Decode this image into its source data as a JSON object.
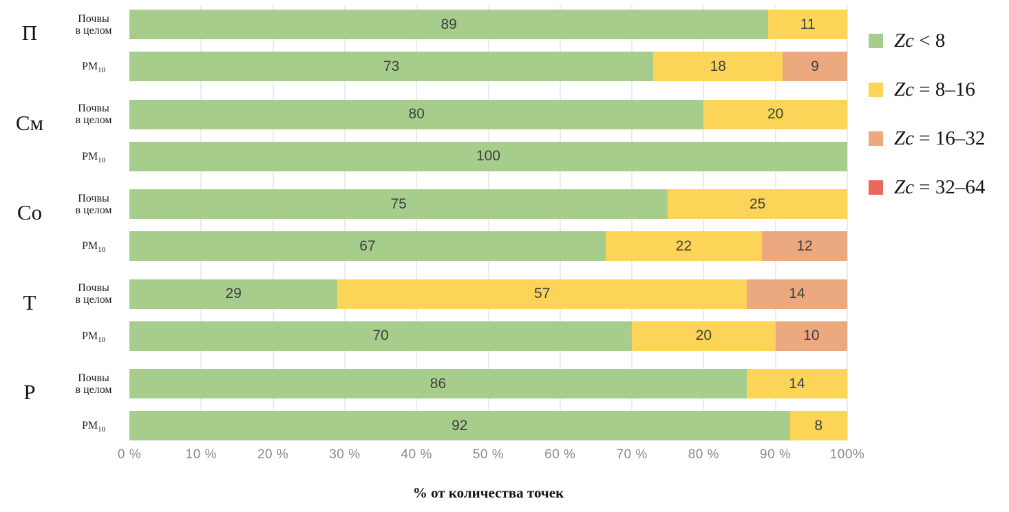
{
  "chart_data": {
    "type": "bar",
    "orientation": "horizontal",
    "stacked": true,
    "xlabel": "% от количества точек",
    "xlim": [
      0,
      100
    ],
    "x_ticks": [
      "0 %",
      "10 %",
      "20 %",
      "30 %",
      "40 %",
      "50 %",
      "60 %",
      "70 %",
      "80 %",
      "90 %",
      "100%"
    ],
    "grid": "vertical",
    "legend_position": "right",
    "legend": [
      {
        "label": "Zc < 8",
        "color": "#a7cd8c"
      },
      {
        "label": "Zc = 8–16",
        "color": "#fbd458"
      },
      {
        "label": "Zc = 16–32",
        "color": "#eca87e"
      },
      {
        "label": "Zc = 32–64",
        "color": "#e8695b"
      }
    ],
    "groups": [
      {
        "label": "П",
        "rows": [
          {
            "label": "Почвы в целом",
            "label_lines": [
              "Почвы",
              "в целом"
            ],
            "values": [
              89,
              11,
              0,
              0
            ]
          },
          {
            "label": "PM10",
            "label_lines": [
              "PM10"
            ],
            "values": [
              73,
              18,
              9,
              0
            ]
          }
        ]
      },
      {
        "label": "См",
        "rows": [
          {
            "label": "Почвы в целом",
            "label_lines": [
              "Почвы",
              "в целом"
            ],
            "values": [
              80,
              20,
              0,
              0
            ]
          },
          {
            "label": "PM10",
            "label_lines": [
              "PM10"
            ],
            "values": [
              100,
              0,
              0,
              0
            ]
          }
        ]
      },
      {
        "label": "Со",
        "rows": [
          {
            "label": "Почвы в целом",
            "label_lines": [
              "Почвы",
              "в целом"
            ],
            "values": [
              75,
              25,
              0,
              0
            ]
          },
          {
            "label": "PM10",
            "label_lines": [
              "PM10"
            ],
            "values": [
              67,
              22,
              12,
              0
            ]
          }
        ]
      },
      {
        "label": "Т",
        "rows": [
          {
            "label": "Почвы в целом",
            "label_lines": [
              "Почвы",
              "в целом"
            ],
            "values": [
              29,
              57,
              14,
              0
            ]
          },
          {
            "label": "PM10",
            "label_lines": [
              "PM10"
            ],
            "values": [
              70,
              20,
              10,
              0
            ]
          }
        ]
      },
      {
        "label": "Р",
        "rows": [
          {
            "label": "Почвы в целом",
            "label_lines": [
              "Почвы",
              "в целом"
            ],
            "values": [
              86,
              14,
              0,
              0
            ]
          },
          {
            "label": "PM10",
            "label_lines": [
              "PM10"
            ],
            "values": [
              92,
              8,
              0,
              0
            ]
          }
        ]
      }
    ]
  },
  "styles": {
    "background": "#ffffff",
    "gridline_color": "#ebebeb",
    "value_label_color": "#3f3f3f",
    "tick_label_color": "#8a8a8a",
    "text_color": "#141414"
  }
}
